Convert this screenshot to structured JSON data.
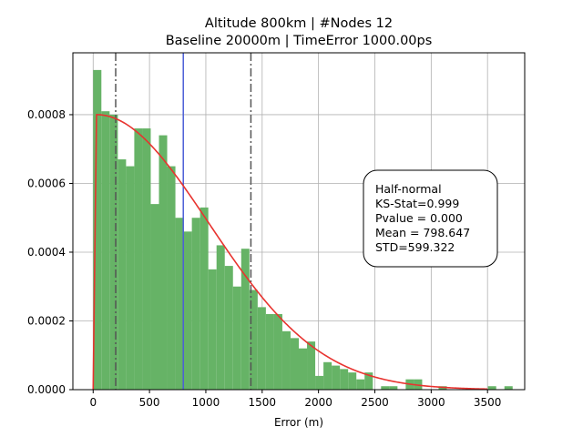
{
  "chart_data": {
    "type": "bar",
    "title": "Altitude 800km | #Nodes 12",
    "subtitle": "Baseline 20000m | TimeError 1000.00ps",
    "xlabel": "Error (m)",
    "ylabel": "",
    "xlim": [
      -180,
      3830
    ],
    "ylim": [
      0,
      0.00098
    ],
    "xticks": [
      0,
      500,
      1000,
      1500,
      2000,
      2500,
      3000,
      3500
    ],
    "yticks": [
      0.0,
      0.0002,
      0.0004,
      0.0006,
      0.0008
    ],
    "ytick_labels": [
      "0.0000",
      "0.0002",
      "0.0004",
      "0.0006",
      "0.0008"
    ],
    "grid": true,
    "histogram": {
      "bin_start": 0,
      "bin_width": 73,
      "density": [
        0.00093,
        0.00081,
        0.0008,
        0.00067,
        0.00065,
        0.00076,
        0.00076,
        0.00054,
        0.00074,
        0.00065,
        0.0005,
        0.00046,
        0.0005,
        0.00053,
        0.00035,
        0.00042,
        0.00036,
        0.0003,
        0.00041,
        0.00029,
        0.00024,
        0.00022,
        0.00022,
        0.00017,
        0.00015,
        0.00012,
        0.00014,
        4e-05,
        8e-05,
        7e-05,
        6e-05,
        5e-05,
        3e-05,
        5e-05,
        0.0,
        1e-05,
        1e-05,
        0.0,
        3e-05,
        3e-05,
        0.0,
        0.0,
        1e-05,
        0.0,
        0.0,
        0.0,
        0.0,
        0.0,
        1e-05,
        0.0,
        1e-05
      ],
      "color": "#66b366"
    },
    "fit_curve": {
      "name": "Half-normal",
      "mean": 798.647,
      "std": 599.322,
      "x_range": [
        0,
        3500
      ],
      "peak_x": 30,
      "peak_density": 0.0008,
      "sigma_fit": 995,
      "color": "#e8332f"
    },
    "vlines": [
      {
        "x": 200,
        "style": "dashdot",
        "color": "#555555"
      },
      {
        "x": 800,
        "style": "solid",
        "color": "#4c5fd7"
      },
      {
        "x": 1400,
        "style": "dashdot",
        "color": "#555555"
      }
    ],
    "annotation": {
      "lines": [
        "Half-normal",
        "KS-Stat=0.999",
        "Pvalue = 0.000",
        "Mean = 798.647",
        "STD=599.322"
      ]
    }
  }
}
